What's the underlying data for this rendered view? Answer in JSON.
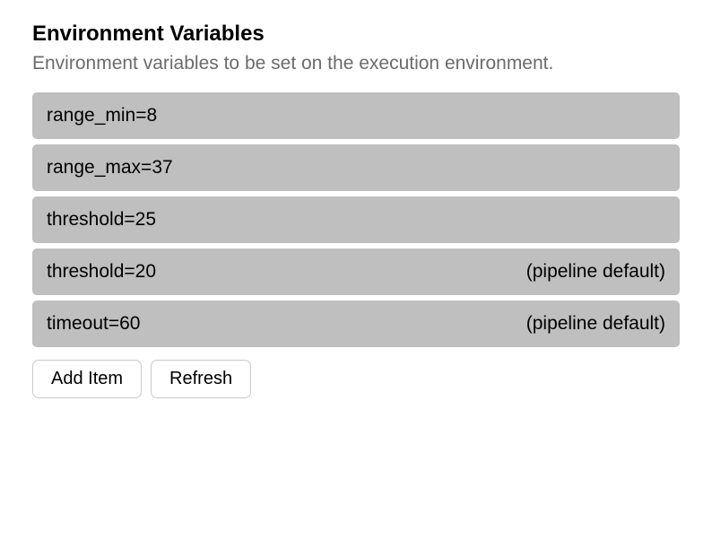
{
  "header": {
    "title": "Environment Variables",
    "description": "Environment variables to be set on the execution environment."
  },
  "items": [
    {
      "text": "range_min=8",
      "badge": ""
    },
    {
      "text": "range_max=37",
      "badge": ""
    },
    {
      "text": "threshold=25",
      "badge": ""
    },
    {
      "text": "threshold=20",
      "badge": "(pipeline default)"
    },
    {
      "text": "timeout=60",
      "badge": "(pipeline default)"
    }
  ],
  "actions": {
    "add_item": "Add Item",
    "refresh": "Refresh"
  },
  "style": {
    "title_color": "#000000",
    "description_color": "#6b6b6b",
    "item_bg": "#bfbfbf",
    "item_text_color": "#000000",
    "button_border": "#c9c9c9",
    "background": "#ffffff"
  }
}
